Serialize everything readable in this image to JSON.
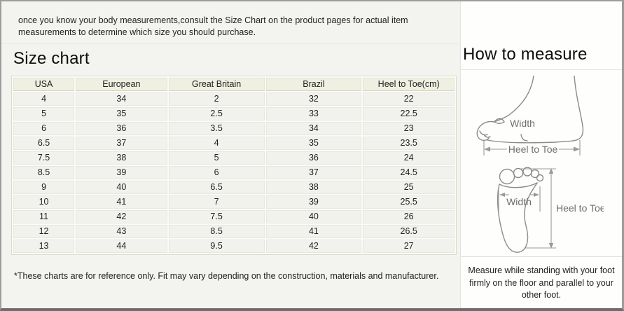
{
  "intro": {
    "text": "once you know your body measurements,consult the Size Chart on the product pages for actual item measurements to determine which size you should purchase."
  },
  "size_chart": {
    "title": "Size chart",
    "columns": [
      "USA",
      "European",
      "Great Britain",
      "Brazil",
      "Heel to Toe(cm)"
    ],
    "rows": [
      [
        "4",
        "34",
        "2",
        "32",
        "22"
      ],
      [
        "5",
        "35",
        "2.5",
        "33",
        "22.5"
      ],
      [
        "6",
        "36",
        "3.5",
        "34",
        "23"
      ],
      [
        "6.5",
        "37",
        "4",
        "35",
        "23.5"
      ],
      [
        "7.5",
        "38",
        "5",
        "36",
        "24"
      ],
      [
        "8.5",
        "39",
        "6",
        "37",
        "24.5"
      ],
      [
        "9",
        "40",
        "6.5",
        "38",
        "25"
      ],
      [
        "10",
        "41",
        "7",
        "39",
        "25.5"
      ],
      [
        "11",
        "42",
        "7.5",
        "40",
        "26"
      ],
      [
        "12",
        "43",
        "8.5",
        "41",
        "26.5"
      ],
      [
        "13",
        "44",
        "9.5",
        "42",
        "27"
      ]
    ],
    "footnote": "*These charts are for reference only. Fit may vary depending on the construction, materials and manufacturer."
  },
  "how_to_measure": {
    "title": "How to measure",
    "side_diagram": {
      "width_label": "Width",
      "length_label": "Heel to Toe"
    },
    "sole_diagram": {
      "width_label": "Width",
      "length_label": "Heel to Toe"
    },
    "note": "Measure while standing with your foot firmly on the floor and parallel to your other foot."
  },
  "colors": {
    "panel_bg": "#f3f3f0",
    "header_row_bg": "#efefe2",
    "data_row_bg": "#f1f1ee",
    "table_border": "#dcdccb",
    "frame_border": "#9c9c9c",
    "frame_bottom": "#6d6d6d",
    "diagram_stroke": "#8b8b8b"
  }
}
